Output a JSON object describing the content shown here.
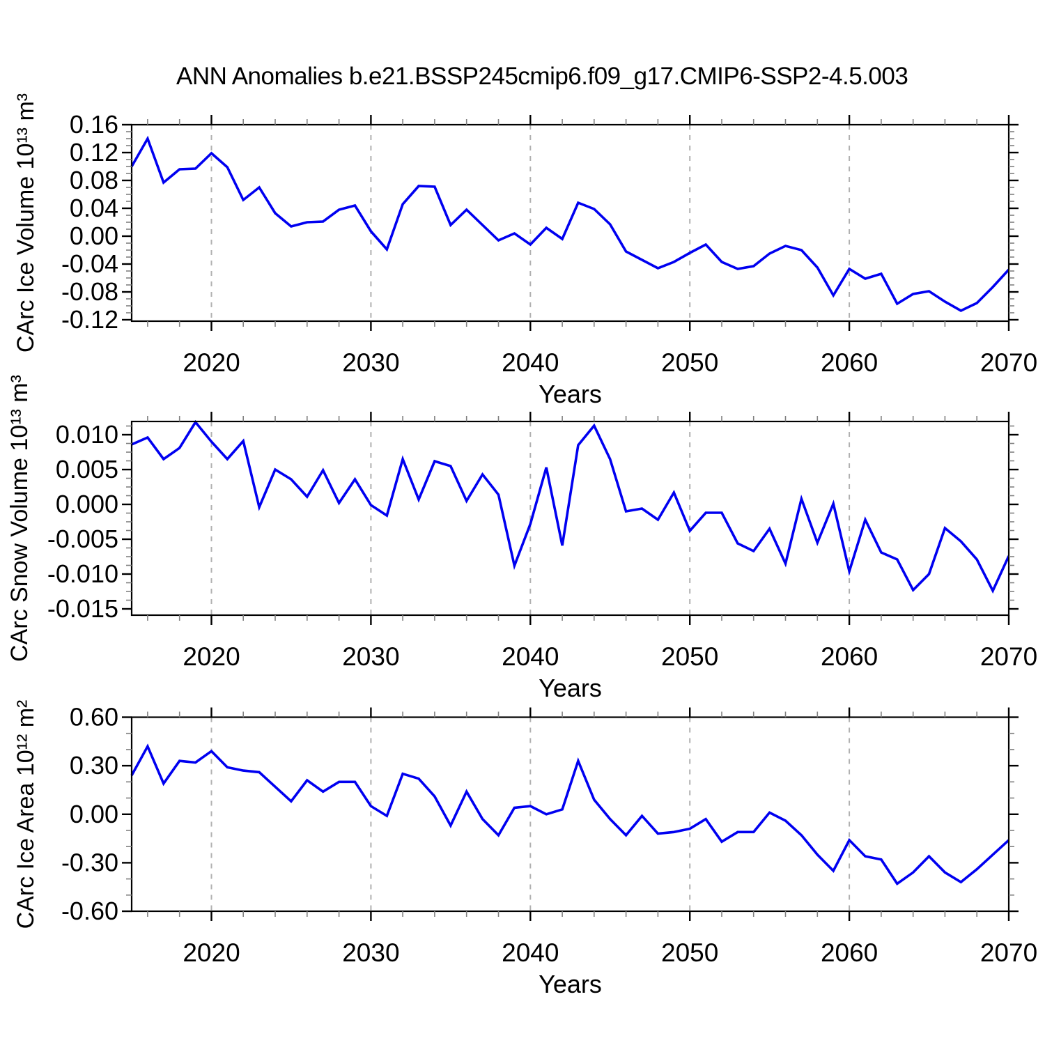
{
  "title": "ANN Anomalies b.e21.BSSP245cmip6.f09_g17.CMIP6-SSP2-4.5.003",
  "colors": {
    "line": "#0000f0",
    "grid": "#b0b0b0",
    "frame": "#000000",
    "minor_tick": "#808080",
    "background": "#ffffff"
  },
  "years": [
    2015,
    2016,
    2017,
    2018,
    2019,
    2020,
    2021,
    2022,
    2023,
    2024,
    2025,
    2026,
    2027,
    2028,
    2029,
    2030,
    2031,
    2032,
    2033,
    2034,
    2035,
    2036,
    2037,
    2038,
    2039,
    2040,
    2041,
    2042,
    2043,
    2044,
    2045,
    2046,
    2047,
    2048,
    2049,
    2050,
    2051,
    2052,
    2053,
    2054,
    2055,
    2056,
    2057,
    2058,
    2059,
    2060,
    2061,
    2062,
    2063,
    2064,
    2065,
    2066,
    2067,
    2068,
    2069,
    2070
  ],
  "chart_data": [
    {
      "type": "line",
      "title": "ANN Anomalies b.e21.BSSP245cmip6.f09_g17.CMIP6-SSP2-4.5.003",
      "ylabel": "CArc Ice Volume 10¹³ m³",
      "xlabel": "Years",
      "xlim": [
        2015,
        2070
      ],
      "ylim": [
        -0.122,
        0.16
      ],
      "xticks": [
        2020,
        2030,
        2040,
        2050,
        2060,
        2070
      ],
      "xtick_labels": [
        "2020",
        "2030",
        "2040",
        "2050",
        "2060",
        "2070"
      ],
      "x_minor_step": 2,
      "gridlines_x": [
        2020,
        2030,
        2040,
        2050,
        2060
      ],
      "grid": "vertical-dashed",
      "legend": "none",
      "yticks": [
        0.16,
        0.12,
        0.08,
        0.04,
        0.0,
        -0.04,
        -0.08,
        -0.12
      ],
      "ytick_labels": [
        "0.16",
        "0.12",
        "0.08",
        "0.04",
        "0.00",
        "-0.04",
        "-0.08",
        "-0.12"
      ],
      "y_minor_step": 0.01,
      "values": [
        0.1,
        0.14,
        0.077,
        0.096,
        0.097,
        0.119,
        0.099,
        0.052,
        0.07,
        0.033,
        0.014,
        0.02,
        0.021,
        0.038,
        0.044,
        0.007,
        -0.019,
        0.046,
        0.072,
        0.071,
        0.016,
        0.038,
        0.016,
        -0.006,
        0.004,
        -0.012,
        0.012,
        -0.004,
        0.048,
        0.039,
        0.017,
        -0.022,
        -0.034,
        -0.046,
        -0.037,
        -0.024,
        -0.012,
        -0.037,
        -0.047,
        -0.043,
        -0.025,
        -0.014,
        -0.02,
        -0.045,
        -0.085,
        -0.047,
        -0.061,
        -0.054,
        -0.097,
        -0.083,
        -0.079,
        -0.094,
        -0.107,
        -0.096,
        -0.073,
        -0.048
      ]
    },
    {
      "type": "line",
      "title": "",
      "ylabel": "CArc Snow Volume 10¹³ m³",
      "xlabel": "Years",
      "xlim": [
        2015,
        2070
      ],
      "ylim": [
        -0.0159,
        0.0119
      ],
      "xticks": [
        2020,
        2030,
        2040,
        2050,
        2060,
        2070
      ],
      "xtick_labels": [
        "2020",
        "2030",
        "2040",
        "2050",
        "2060",
        "2070"
      ],
      "x_minor_step": 2,
      "gridlines_x": [
        2020,
        2030,
        2040,
        2050,
        2060
      ],
      "grid": "vertical-dashed",
      "legend": "none",
      "yticks": [
        0.01,
        0.005,
        0.0,
        -0.005,
        -0.01,
        -0.015
      ],
      "ytick_labels": [
        "0.010",
        "0.005",
        "0.000",
        "-0.005",
        "-0.010",
        "-0.015"
      ],
      "y_minor_step": 0.00125,
      "values": [
        0.0086,
        0.0096,
        0.0065,
        0.0081,
        0.0118,
        0.009,
        0.0065,
        0.0091,
        -0.0004,
        0.005,
        0.0036,
        0.0011,
        0.0049,
        0.0002,
        0.0036,
        -0.0001,
        -0.0016,
        0.0065,
        0.0007,
        0.0062,
        0.0055,
        0.0005,
        0.0043,
        0.0014,
        -0.0088,
        -0.0028,
        0.0053,
        -0.0059,
        0.0085,
        0.0113,
        0.0065,
        -0.001,
        -0.0006,
        -0.0022,
        0.0017,
        -0.0038,
        -0.0012,
        -0.0012,
        -0.0056,
        -0.0067,
        -0.0035,
        -0.0085,
        0.0008,
        -0.0055,
        0.0001,
        -0.0096,
        -0.0022,
        -0.0069,
        -0.0079,
        -0.0123,
        -0.01,
        -0.0034,
        -0.0053,
        -0.0079,
        -0.0124,
        -0.0074
      ]
    },
    {
      "type": "line",
      "title": "",
      "ylabel": "CArc Ice Area 10¹² m²",
      "xlabel": "Years",
      "xlim": [
        2015,
        2070
      ],
      "ylim": [
        -0.6,
        0.6
      ],
      "xticks": [
        2020,
        2030,
        2040,
        2050,
        2060,
        2070
      ],
      "xtick_labels": [
        "2020",
        "2030",
        "2040",
        "2050",
        "2060",
        "2070"
      ],
      "x_minor_step": 2,
      "gridlines_x": [
        2020,
        2030,
        2040,
        2050,
        2060
      ],
      "grid": "vertical-dashed",
      "legend": "none",
      "yticks": [
        0.6,
        0.3,
        0.0,
        -0.3,
        -0.6
      ],
      "ytick_labels": [
        "0.60",
        "0.30",
        "0.00",
        "-0.30",
        "-0.60"
      ],
      "y_minor_step": 0.1,
      "values": [
        0.24,
        0.42,
        0.19,
        0.33,
        0.32,
        0.39,
        0.29,
        0.27,
        0.26,
        0.17,
        0.08,
        0.21,
        0.14,
        0.2,
        0.2,
        0.05,
        -0.01,
        0.25,
        0.22,
        0.11,
        -0.07,
        0.14,
        -0.03,
        -0.13,
        0.04,
        0.05,
        0.0,
        0.03,
        0.33,
        0.09,
        -0.03,
        -0.13,
        -0.01,
        -0.12,
        -0.11,
        -0.09,
        -0.03,
        -0.17,
        -0.11,
        -0.11,
        0.01,
        -0.04,
        -0.13,
        -0.25,
        -0.35,
        -0.16,
        -0.26,
        -0.28,
        -0.43,
        -0.36,
        -0.26,
        -0.36,
        -0.42,
        -0.34,
        -0.25,
        -0.16
      ]
    }
  ]
}
